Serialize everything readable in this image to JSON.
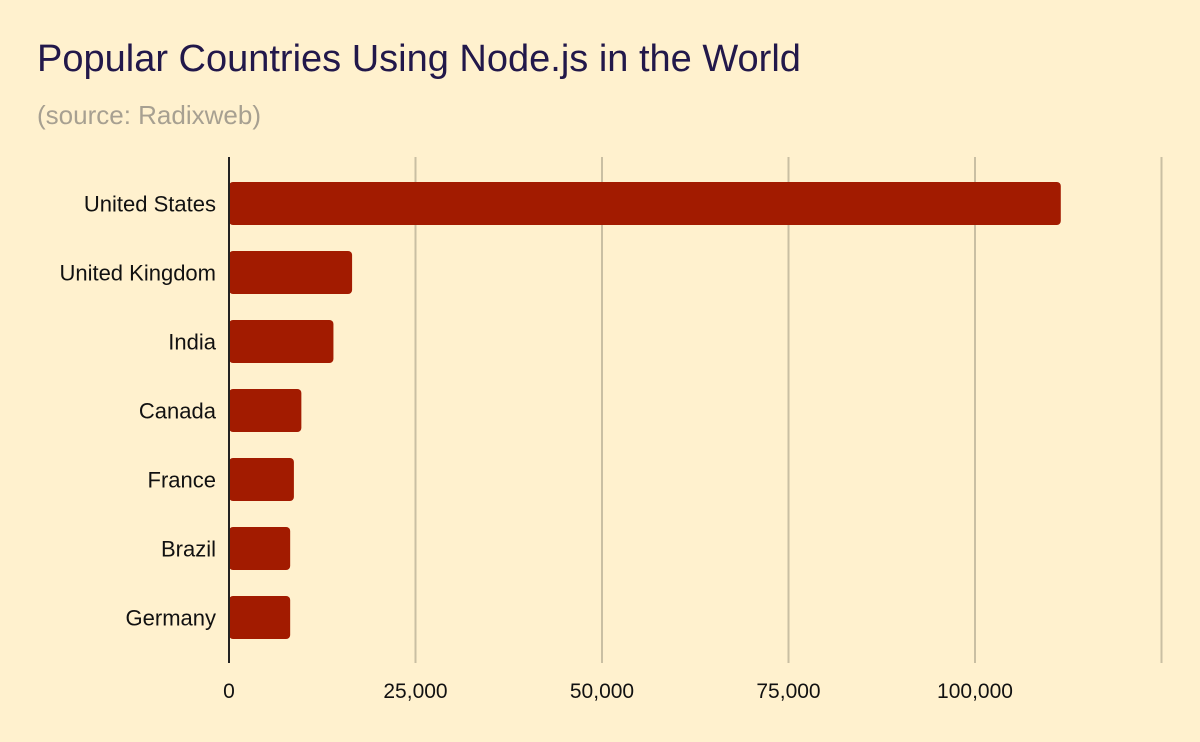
{
  "title": "Popular Countries Using Node.js in the World",
  "subtitle": "(source: Radixweb)",
  "colors": {
    "background": "#FFF1CE",
    "bar": "#A21B00",
    "grid": "#C9BFA3",
    "axis": "#222222"
  },
  "chart_data": {
    "type": "bar",
    "orientation": "horizontal",
    "title": "Popular Countries Using Node.js in the World",
    "subtitle": "(source: Radixweb)",
    "categories": [
      "United States",
      "United Kingdom",
      "India",
      "Canada",
      "France",
      "Brazil",
      "Germany"
    ],
    "values": [
      111500,
      16500,
      14000,
      9700,
      8700,
      8200,
      8200
    ],
    "xlim": [
      0,
      125000
    ],
    "x_ticks": [
      0,
      25000,
      50000,
      75000,
      100000
    ],
    "x_tick_labels": [
      "0",
      "25,000",
      "50,000",
      "75,000",
      "100,000"
    ],
    "xlabel": "",
    "ylabel": "",
    "grid": true,
    "legend": "none"
  }
}
